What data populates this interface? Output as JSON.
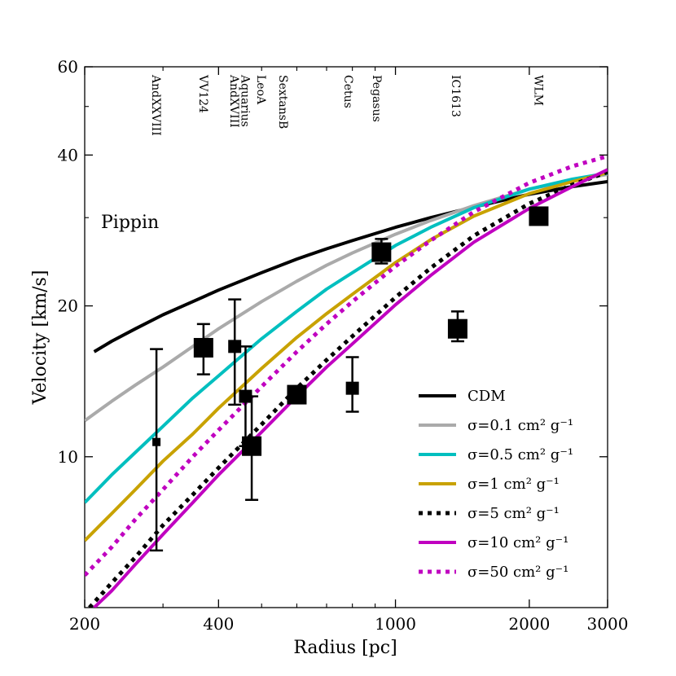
{
  "chart_data": {
    "type": "line",
    "title": "",
    "panel_label": "Pippin",
    "xlabel": "Radius [pc]",
    "ylabel": "Velocity [km/s]",
    "xscale": "log",
    "yscale": "log",
    "xlim": [
      200,
      3000
    ],
    "ylim": [
      5,
      60
    ],
    "xticks": [
      {
        "v": 200,
        "label": "200"
      },
      {
        "v": 400,
        "label": "400"
      },
      {
        "v": 1000,
        "label": "1000"
      },
      {
        "v": 2000,
        "label": "2000"
      },
      {
        "v": 3000,
        "label": "3000"
      }
    ],
    "yticks": [
      {
        "v": 10,
        "label": "10"
      },
      {
        "v": 20,
        "label": "20"
      },
      {
        "v": 40,
        "label": "40"
      },
      {
        "v": 60,
        "label": "60"
      }
    ],
    "legend_position": "lower-right",
    "series": [
      {
        "name": "CDM",
        "color": "#000000",
        "style": "solid",
        "width": 4,
        "x": [
          210,
          230,
          260,
          300,
          350,
          400,
          500,
          600,
          700,
          800,
          1000,
          1200,
          1500,
          2000,
          2500,
          3000
        ],
        "y": [
          16.2,
          17.0,
          18.0,
          19.2,
          20.4,
          21.5,
          23.3,
          24.8,
          26.0,
          27.0,
          28.7,
          30.0,
          31.5,
          33.4,
          34.6,
          35.4
        ]
      },
      {
        "name": "σ=0.1 cm² g⁻¹",
        "color": "#aaaaaa",
        "style": "solid",
        "width": 4,
        "x": [
          200,
          230,
          260,
          300,
          350,
          400,
          500,
          600,
          700,
          800,
          1000,
          1200,
          1500,
          2000,
          2500,
          3000
        ],
        "y": [
          11.8,
          12.9,
          13.9,
          15.1,
          16.6,
          18.0,
          20.4,
          22.4,
          24.1,
          25.5,
          27.8,
          29.6,
          31.7,
          34.2,
          35.6,
          36.6
        ]
      },
      {
        "name": "σ=0.5 cm² g⁻¹",
        "color": "#00bfbf",
        "style": "solid",
        "width": 4,
        "x": [
          200,
          230,
          260,
          300,
          350,
          400,
          500,
          600,
          700,
          800,
          1000,
          1200,
          1500,
          2000,
          2500,
          3000
        ],
        "y": [
          8.1,
          9.2,
          10.2,
          11.5,
          13.1,
          14.5,
          17.2,
          19.5,
          21.6,
          23.3,
          26.4,
          28.7,
          31.4,
          34.2,
          35.8,
          36.8
        ]
      },
      {
        "name": "σ=1 cm² g⁻¹",
        "color": "#c8a200",
        "style": "solid",
        "width": 4,
        "x": [
          200,
          230,
          260,
          300,
          350,
          400,
          500,
          600,
          700,
          800,
          1000,
          1200,
          1500,
          2000,
          2500,
          3000
        ],
        "y": [
          6.8,
          7.7,
          8.6,
          9.8,
          11.1,
          12.5,
          15.0,
          17.3,
          19.3,
          21.1,
          24.4,
          27.1,
          30.2,
          33.5,
          35.4,
          36.9
        ]
      },
      {
        "name": "σ=5 cm² g⁻¹",
        "color": "#000000",
        "style": "dotted",
        "width": 5,
        "x": [
          205,
          230,
          260,
          300,
          350,
          400,
          500,
          600,
          700,
          800,
          1000,
          1200,
          1500,
          2000,
          2500,
          3000
        ],
        "y": [
          5.0,
          5.6,
          6.3,
          7.3,
          8.4,
          9.5,
          11.6,
          13.7,
          15.6,
          17.4,
          20.8,
          23.8,
          27.6,
          32.0,
          34.9,
          37.0
        ]
      },
      {
        "name": "σ=10 cm² g⁻¹",
        "color": "#c000c0",
        "style": "solid",
        "width": 4,
        "x": [
          210,
          230,
          260,
          300,
          350,
          400,
          500,
          600,
          700,
          800,
          1000,
          1200,
          1500,
          2000,
          2500,
          3000
        ],
        "y": [
          5.0,
          5.4,
          6.1,
          7.0,
          8.1,
          9.2,
          11.2,
          13.2,
          15.1,
          16.8,
          20.1,
          23.0,
          26.8,
          31.3,
          34.6,
          37.4
        ]
      },
      {
        "name": "σ=50 cm² g⁻¹",
        "color": "#c000c0",
        "style": "dotted",
        "width": 5,
        "x": [
          200,
          230,
          260,
          300,
          350,
          400,
          500,
          600,
          700,
          800,
          1000,
          1200,
          1500,
          2000,
          2500,
          3000
        ],
        "y": [
          5.8,
          6.6,
          7.5,
          8.6,
          10.0,
          11.3,
          13.8,
          16.2,
          18.4,
          20.4,
          24.0,
          27.0,
          30.8,
          35.2,
          38.0,
          39.8
        ]
      }
    ],
    "points": [
      {
        "name": "AndXXVIII",
        "x": 290,
        "y": 10.7,
        "err": [
          6.5,
          16.4
        ],
        "size": "small"
      },
      {
        "name": "VV124",
        "x": 370,
        "y": 16.5,
        "err": [
          14.6,
          18.4
        ],
        "size": "large"
      },
      {
        "name": "AndXVIII",
        "x": 435,
        "y": 16.6,
        "err": [
          12.7,
          20.6
        ],
        "size": "medium"
      },
      {
        "name": "Aquarius",
        "x": 460,
        "y": 13.2,
        "err": [
          10.5,
          16.6
        ],
        "size": "medium"
      },
      {
        "name": "LeoA",
        "x": 475,
        "y": 10.5,
        "err": [
          8.2,
          13.2
        ],
        "size": "large"
      },
      {
        "name": "SextansB",
        "x": 600,
        "y": 13.3,
        "err": [
          null,
          null
        ],
        "size": "large"
      },
      {
        "name": "Cetus",
        "x": 800,
        "y": 13.7,
        "err": [
          12.3,
          15.8
        ],
        "size": "medium"
      },
      {
        "name": "Pegasus",
        "x": 930,
        "y": 25.6,
        "err": [
          24.3,
          27.2
        ],
        "size": "large"
      },
      {
        "name": "IC1613",
        "x": 1380,
        "y": 18.0,
        "err": [
          17.0,
          19.5
        ],
        "size": "large"
      },
      {
        "name": "WLM",
        "x": 2100,
        "y": 30.2,
        "err": [
          null,
          null
        ],
        "size": "large"
      }
    ],
    "galaxy_labels": [
      {
        "name": "AndXXVIII",
        "x": 290
      },
      {
        "name": "VV124",
        "x": 370
      },
      {
        "name": "AndXVIII",
        "x": 435
      },
      {
        "name": "Aquarius",
        "x": 460
      },
      {
        "name": "LeoA",
        "x": 500
      },
      {
        "name": "SextansB",
        "x": 560
      },
      {
        "name": "Cetus",
        "x": 785
      },
      {
        "name": "Pegasus",
        "x": 910
      },
      {
        "name": "IC1613",
        "x": 1370
      },
      {
        "name": "WLM",
        "x": 2100
      }
    ]
  }
}
